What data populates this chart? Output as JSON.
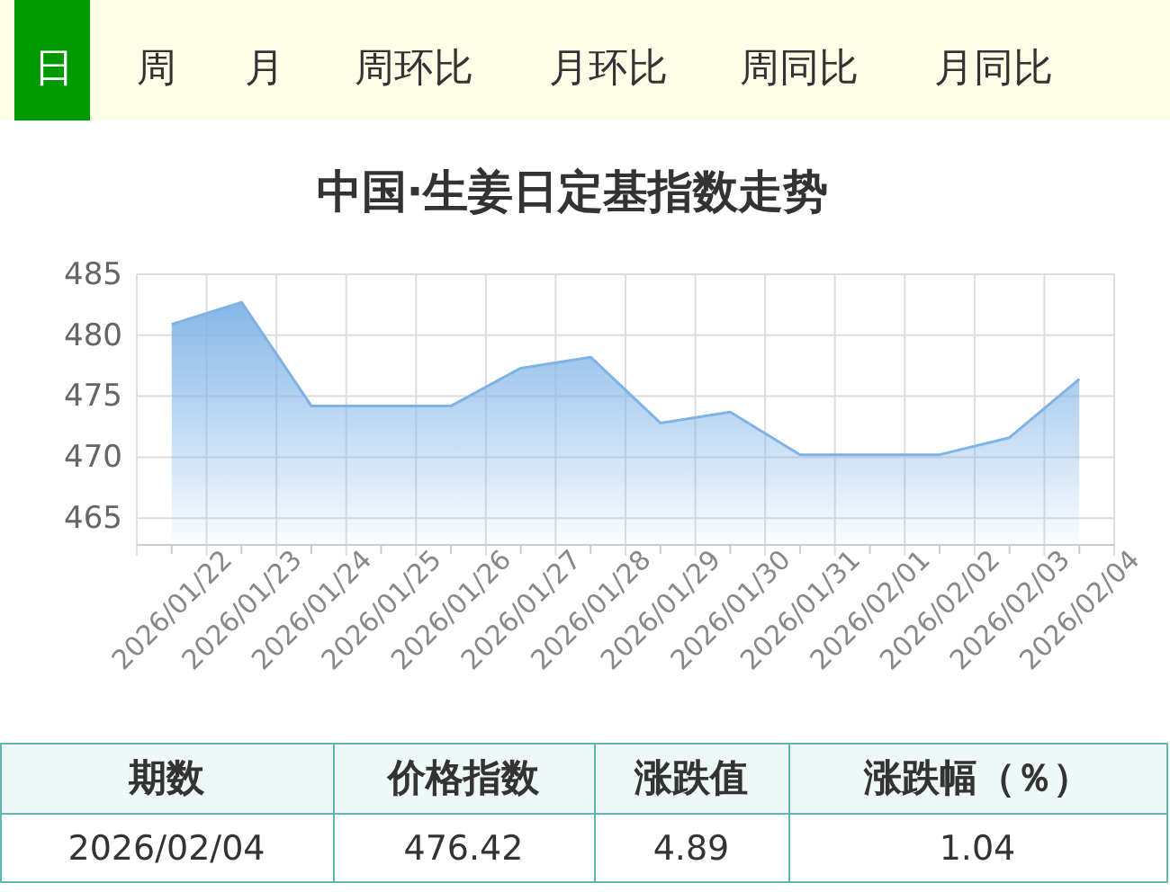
{
  "chart_data": {
    "type": "area",
    "title": "中国·生姜日定基指数走势",
    "categories": [
      "2026/01/22",
      "2026/01/23",
      "2026/01/24",
      "2026/01/25",
      "2026/01/26",
      "2026/01/27",
      "2026/01/28",
      "2026/01/29",
      "2026/01/30",
      "2026/01/31",
      "2026/02/01",
      "2026/02/02",
      "2026/02/03",
      "2026/02/04"
    ],
    "series": [
      {
        "color": "#7fb3e6",
        "values": [
          480.9,
          482.7,
          474.2,
          474.2,
          474.2,
          477.3,
          478.2,
          472.8,
          473.7,
          470.2,
          470.2,
          470.2,
          471.6,
          476.4
        ]
      }
    ],
    "ylim": [
      462.8,
      485
    ],
    "yticks": [
      465,
      470,
      475,
      480,
      485
    ],
    "grid": true,
    "annotations": [
      "日",
      "周",
      "月",
      "周环比",
      "月环比",
      "周同比",
      "月同比",
      "期数",
      "价格指数",
      "涨跌值",
      "涨跌幅（％）",
      "2026/02/04",
      "476.42",
      "4.89",
      "1.04"
    ]
  }
}
